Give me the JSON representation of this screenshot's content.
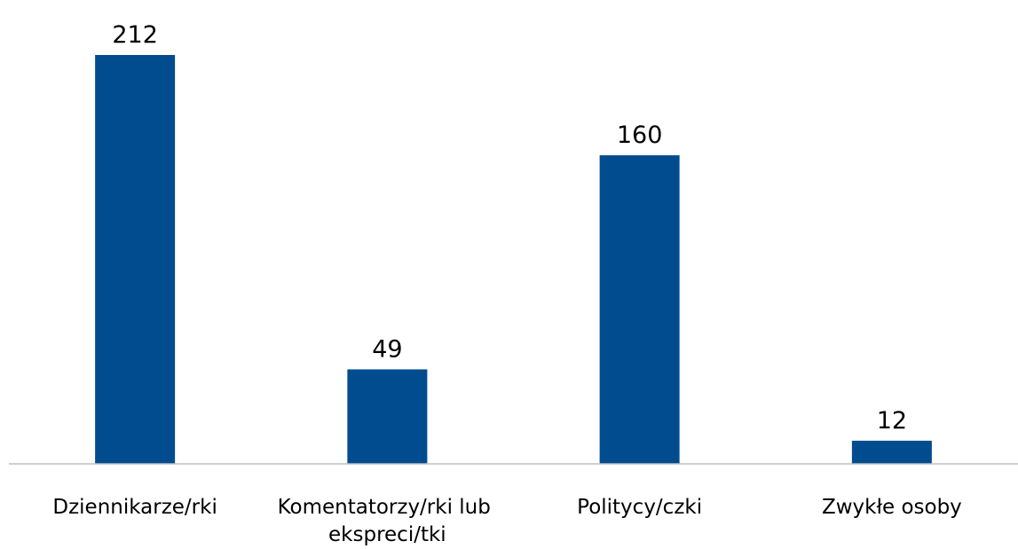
{
  "chart_data": {
    "type": "bar",
    "categories": [
      "Dziennikarze/rki",
      "Komentatorzy/rki lub ekspreci/tki",
      "Politycy/czki",
      "Zwykłe osoby"
    ],
    "values": [
      212,
      49,
      160,
      12
    ],
    "color": "#004c8e"
  }
}
